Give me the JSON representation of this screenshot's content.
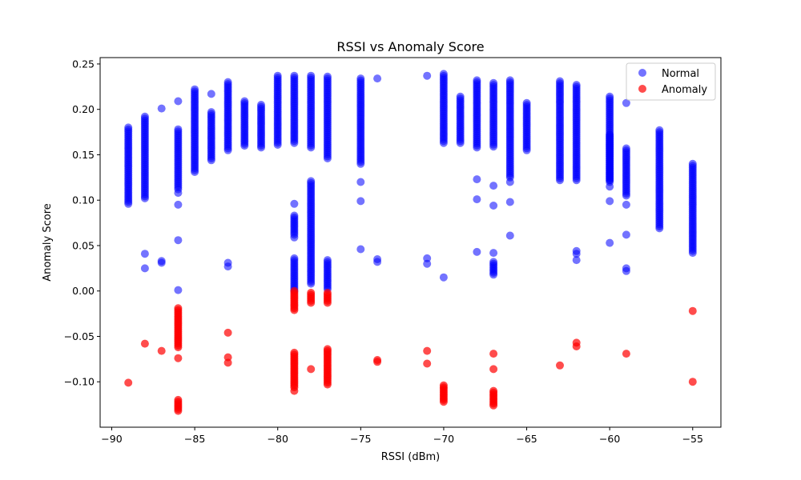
{
  "chart_data": {
    "type": "scatter",
    "title": "RSSI vs Anomaly Score",
    "xlabel": "RSSI (dBm)",
    "ylabel": "Anomaly Score",
    "xlim": [
      -90.7,
      -53.3
    ],
    "ylim": [
      -0.15,
      0.257
    ],
    "x_ticks": [
      -90,
      -85,
      -80,
      -75,
      -70,
      -65,
      -60,
      -55
    ],
    "y_ticks": [
      -0.1,
      -0.05,
      0.0,
      0.05,
      0.1,
      0.15,
      0.2,
      0.25
    ],
    "x_tick_labels": [
      "−90",
      "−85",
      "−80",
      "−75",
      "−70",
      "−65",
      "−60",
      "−55"
    ],
    "y_tick_labels": [
      "−0.10",
      "−0.05",
      "0.00",
      "0.05",
      "0.10",
      "0.15",
      "0.20",
      "0.25"
    ],
    "grid": false,
    "legend_position": "top-right",
    "series": [
      {
        "name": "Normal",
        "color": "#0000ff",
        "alpha": 0.55,
        "columns": [
          {
            "x": -89,
            "range": [
              0.096,
              0.18
            ]
          },
          {
            "x": -88,
            "range": [
              0.102,
              0.192
            ]
          },
          {
            "x": -87,
            "range": [
              0.201,
              0.201
            ]
          },
          {
            "x": -86,
            "range": [
              0.001,
              0.001
            ]
          },
          {
            "x": -86,
            "range": [
              0.112,
              0.178
            ]
          },
          {
            "x": -85,
            "range": [
              0.131,
              0.222
            ]
          },
          {
            "x": -84,
            "range": [
              0.144,
              0.197
            ]
          },
          {
            "x": -83,
            "range": [
              0.155,
              0.23
            ]
          },
          {
            "x": -82,
            "range": [
              0.16,
              0.209
            ]
          },
          {
            "x": -81,
            "range": [
              0.158,
              0.205
            ]
          },
          {
            "x": -80,
            "range": [
              0.161,
              0.237
            ]
          },
          {
            "x": -79,
            "range": [
              0.163,
              0.237
            ]
          },
          {
            "x": -79,
            "range": [
              0.0,
              0.036
            ]
          },
          {
            "x": -79,
            "range": [
              0.062,
              0.083
            ]
          },
          {
            "x": -78,
            "range": [
              0.158,
              0.237
            ]
          },
          {
            "x": -78,
            "range": [
              0.008,
              0.121
            ]
          },
          {
            "x": -77,
            "range": [
              0.146,
              0.236
            ]
          },
          {
            "x": -77,
            "range": [
              0.002,
              0.034
            ]
          },
          {
            "x": -75,
            "range": [
              0.14,
              0.234
            ]
          },
          {
            "x": -74,
            "range": [
              0.234,
              0.234
            ]
          },
          {
            "x": -71,
            "range": [
              0.237,
              0.237
            ]
          },
          {
            "x": -70,
            "range": [
              0.163,
              0.239
            ]
          },
          {
            "x": -70,
            "range": [
              0.015,
              0.015
            ]
          },
          {
            "x": -69,
            "range": [
              0.163,
              0.214
            ]
          },
          {
            "x": -68,
            "range": [
              0.158,
              0.232
            ]
          },
          {
            "x": -67,
            "range": [
              0.159,
              0.229
            ]
          },
          {
            "x": -67,
            "range": [
              0.018,
              0.032
            ]
          },
          {
            "x": -66,
            "range": [
              0.125,
              0.232
            ]
          },
          {
            "x": -65,
            "range": [
              0.155,
              0.207
            ]
          },
          {
            "x": -63,
            "range": [
              0.122,
              0.231
            ]
          },
          {
            "x": -62,
            "range": [
              0.122,
              0.227
            ]
          },
          {
            "x": -60,
            "range": [
              0.12,
              0.214
            ]
          },
          {
            "x": -60,
            "range": [
              0.122,
              0.172
            ]
          },
          {
            "x": -59,
            "range": [
              0.105,
              0.157
            ]
          },
          {
            "x": -59,
            "range": [
              0.207,
              0.207
            ]
          },
          {
            "x": -57,
            "range": [
              0.069,
              0.177
            ]
          },
          {
            "x": -55,
            "range": [
              0.042,
              0.14
            ]
          }
        ],
        "points": [
          {
            "x": -88,
            "y": 0.041
          },
          {
            "x": -88,
            "y": 0.025
          },
          {
            "x": -87,
            "y": 0.033
          },
          {
            "x": -87,
            "y": 0.031
          },
          {
            "x": -86,
            "y": 0.108
          },
          {
            "x": -86,
            "y": 0.095
          },
          {
            "x": -86,
            "y": 0.056
          },
          {
            "x": -86,
            "y": 0.209
          },
          {
            "x": -84,
            "y": 0.217
          },
          {
            "x": -83,
            "y": 0.031
          },
          {
            "x": -83,
            "y": 0.027
          },
          {
            "x": -79,
            "y": 0.096
          },
          {
            "x": -79,
            "y": 0.059
          },
          {
            "x": -75,
            "y": 0.12
          },
          {
            "x": -75,
            "y": 0.099
          },
          {
            "x": -75,
            "y": 0.046
          },
          {
            "x": -74,
            "y": 0.035
          },
          {
            "x": -74,
            "y": 0.032
          },
          {
            "x": -71,
            "y": 0.036
          },
          {
            "x": -71,
            "y": 0.03
          },
          {
            "x": -68,
            "y": 0.123
          },
          {
            "x": -68,
            "y": 0.101
          },
          {
            "x": -68,
            "y": 0.043
          },
          {
            "x": -67,
            "y": 0.116
          },
          {
            "x": -67,
            "y": 0.094
          },
          {
            "x": -67,
            "y": 0.042
          },
          {
            "x": -66,
            "y": 0.12
          },
          {
            "x": -66,
            "y": 0.098
          },
          {
            "x": -66,
            "y": 0.061
          },
          {
            "x": -62,
            "y": 0.044
          },
          {
            "x": -62,
            "y": 0.041
          },
          {
            "x": -62,
            "y": 0.034
          },
          {
            "x": -60,
            "y": 0.115
          },
          {
            "x": -60,
            "y": 0.099
          },
          {
            "x": -60,
            "y": 0.053
          },
          {
            "x": -59,
            "y": 0.095
          },
          {
            "x": -59,
            "y": 0.062
          },
          {
            "x": -59,
            "y": 0.025
          },
          {
            "x": -59,
            "y": 0.022
          }
        ]
      },
      {
        "name": "Anomaly",
        "color": "#ff0000",
        "alpha": 0.7,
        "columns": [
          {
            "x": -86,
            "range": [
              -0.132,
              -0.12
            ]
          },
          {
            "x": -86,
            "range": [
              -0.062,
              -0.019
            ]
          },
          {
            "x": -79,
            "range": [
              -0.106,
              -0.068
            ]
          },
          {
            "x": -79,
            "range": [
              -0.021,
              0.0
            ]
          },
          {
            "x": -78,
            "range": [
              -0.013,
              -0.002
            ]
          },
          {
            "x": -77,
            "range": [
              -0.103,
              -0.064
            ]
          },
          {
            "x": -77,
            "range": [
              -0.013,
              -0.002
            ]
          },
          {
            "x": -70,
            "range": [
              -0.122,
              -0.104
            ]
          },
          {
            "x": -67,
            "range": [
              -0.126,
              -0.11
            ]
          }
        ],
        "points": [
          {
            "x": -89,
            "y": -0.101
          },
          {
            "x": -88,
            "y": -0.058
          },
          {
            "x": -87,
            "y": -0.066
          },
          {
            "x": -86,
            "y": -0.074
          },
          {
            "x": -83,
            "y": -0.046
          },
          {
            "x": -83,
            "y": -0.073
          },
          {
            "x": -83,
            "y": -0.079
          },
          {
            "x": -79,
            "y": -0.11
          },
          {
            "x": -78,
            "y": -0.086
          },
          {
            "x": -74,
            "y": -0.076
          },
          {
            "x": -74,
            "y": -0.078
          },
          {
            "x": -71,
            "y": -0.066
          },
          {
            "x": -71,
            "y": -0.08
          },
          {
            "x": -67,
            "y": -0.069
          },
          {
            "x": -67,
            "y": -0.086
          },
          {
            "x": -63,
            "y": -0.082
          },
          {
            "x": -62,
            "y": -0.057
          },
          {
            "x": -62,
            "y": -0.061
          },
          {
            "x": -59,
            "y": -0.069
          },
          {
            "x": -55,
            "y": -0.022
          },
          {
            "x": -55,
            "y": -0.1
          }
        ]
      }
    ]
  }
}
